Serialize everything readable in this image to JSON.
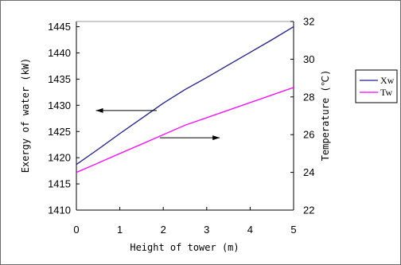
{
  "chart_data": {
    "type": "line",
    "title": "",
    "xlabel": "Height of tower (m)",
    "ylabel_left": "Exergy of water (kW)",
    "ylabel_right": "Temperature (℃)",
    "x_ticks": [
      "0",
      "1",
      "2",
      "3",
      "4",
      "5"
    ],
    "y_left_ticks": [
      "1410",
      "1415",
      "1420",
      "1425",
      "1430",
      "1435",
      "1440",
      "1445"
    ],
    "y_right_ticks": [
      "22",
      "24",
      "26",
      "28",
      "30",
      "32"
    ],
    "xlim": [
      0,
      5
    ],
    "ylim_left": [
      1410,
      1446
    ],
    "ylim_right": [
      22,
      32
    ],
    "grid": false,
    "legend_position": "right",
    "series": [
      {
        "name": "Xw",
        "axis": "left",
        "color": "#1f1f8f",
        "x": [
          0,
          0.5,
          1,
          1.5,
          2,
          2.5,
          3,
          3.5,
          4,
          4.5,
          5
        ],
        "values": [
          1418.7,
          1421.6,
          1424.6,
          1427.5,
          1430.4,
          1433.0,
          1435.3,
          1437.7,
          1440.1,
          1442.5,
          1445.0
        ]
      },
      {
        "name": "Tw",
        "axis": "right",
        "color": "#ff00ff",
        "x": [
          0,
          0.5,
          1,
          1.5,
          2,
          2.5,
          3,
          3.5,
          4,
          4.5,
          5
        ],
        "values": [
          24.0,
          24.5,
          25.0,
          25.5,
          26.0,
          26.5,
          26.9,
          27.3,
          27.7,
          28.1,
          28.5
        ]
      }
    ],
    "annotations": [
      {
        "name": "arrow-to-left-axis",
        "from_x": 1.85,
        "to_x": 0.45,
        "y_left": 1429.0
      },
      {
        "name": "arrow-to-right-axis",
        "from_x": 1.92,
        "to_x": 3.3,
        "y_left": 1423.8
      }
    ]
  }
}
